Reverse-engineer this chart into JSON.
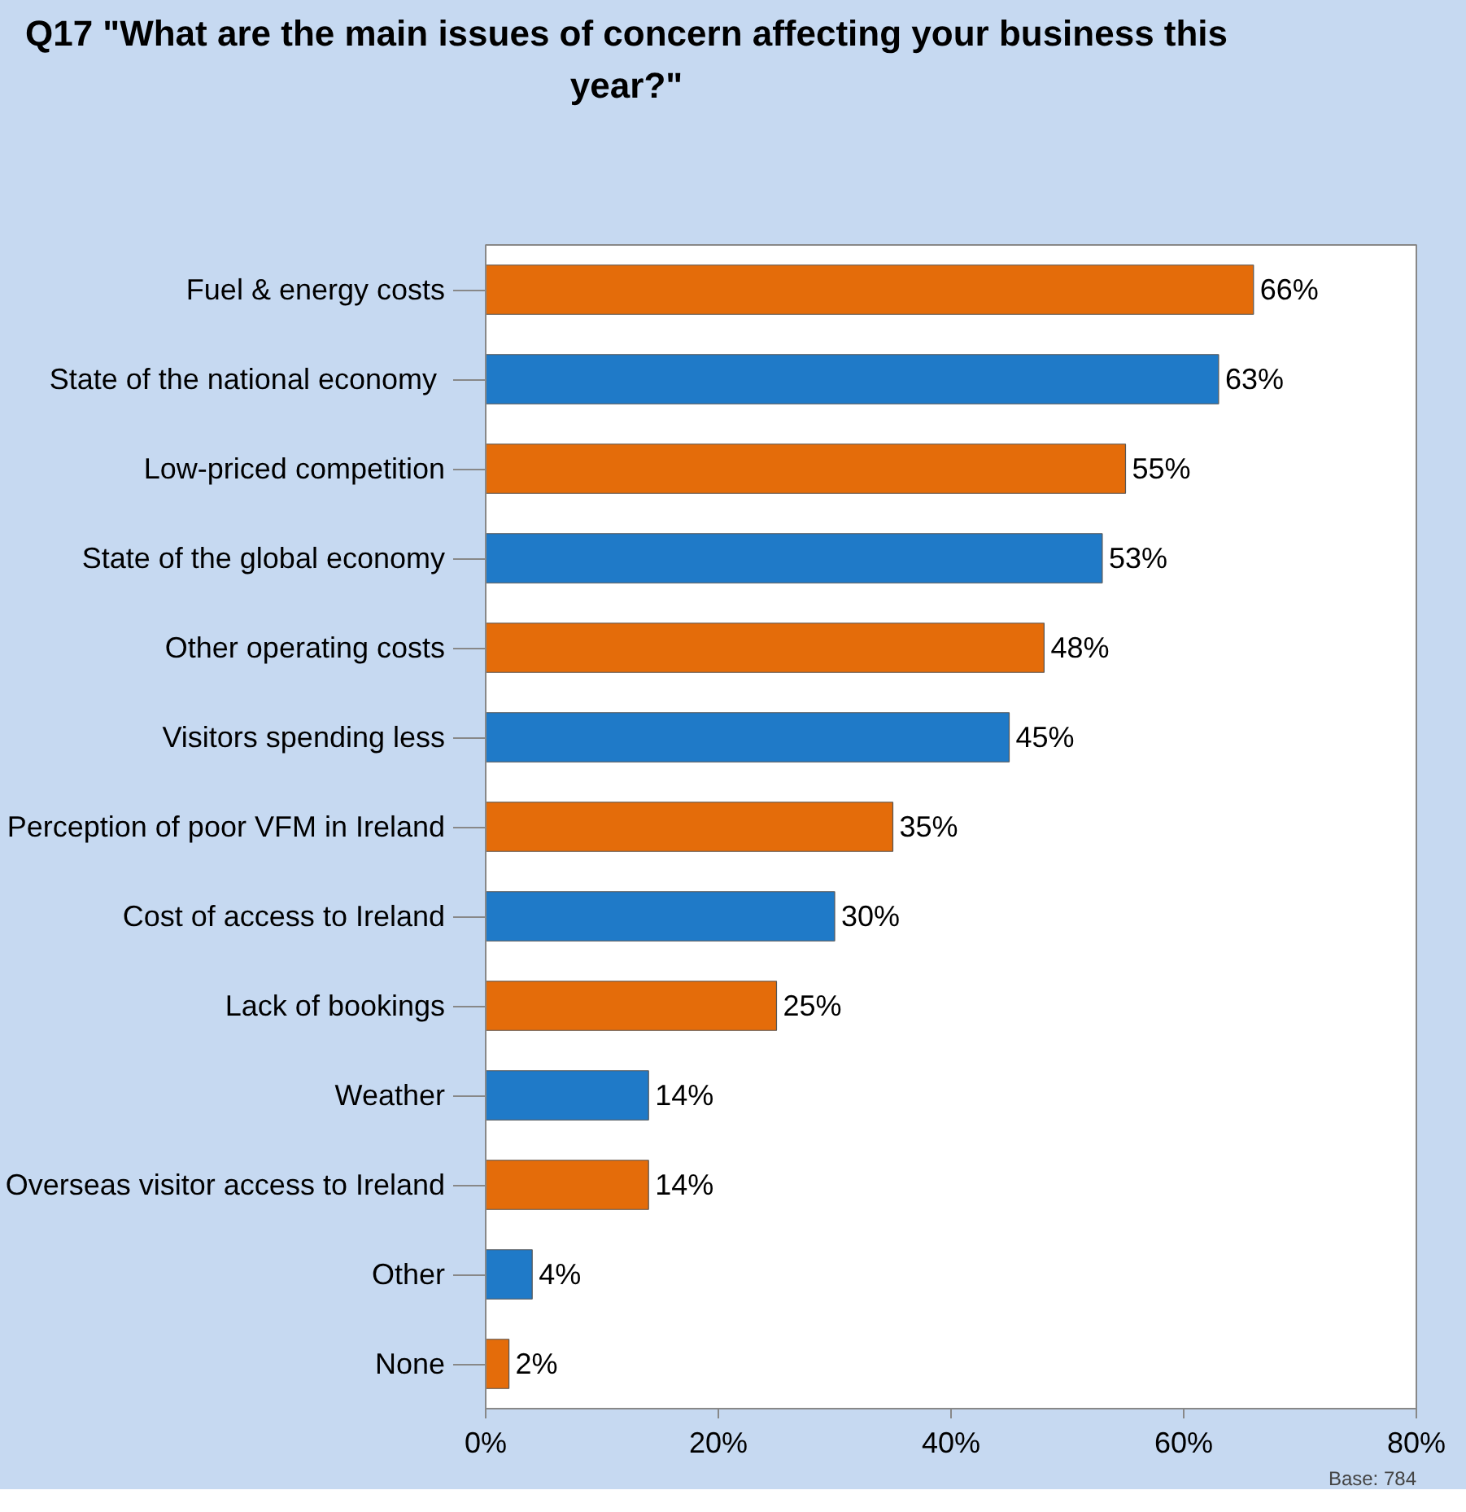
{
  "chart_data": {
    "type": "bar",
    "orientation": "horizontal",
    "title": "Q17 \"What are the main issues of concern affecting your business this year?\"",
    "categories": [
      "Fuel & energy costs",
      "State of the national  economy",
      "Low-priced competition",
      "State of the global economy",
      "Other operating costs",
      "Visitors spending less",
      "Perception of poor VFM in Ireland",
      "Cost of access to Ireland",
      "Lack of bookings",
      "Weather",
      "Overseas visitor access to Ireland",
      "Other",
      "None"
    ],
    "values": [
      66,
      63,
      55,
      53,
      48,
      45,
      35,
      30,
      25,
      14,
      14,
      4,
      2
    ],
    "value_labels": [
      "66%",
      "63%",
      "55%",
      "53%",
      "48%",
      "45%",
      "35%",
      "30%",
      "25%",
      "14%",
      "14%",
      "4%",
      "2%"
    ],
    "colors": [
      "#e46c0a",
      "#1f7ac8",
      "#e46c0a",
      "#1f7ac8",
      "#e46c0a",
      "#1f7ac8",
      "#e46c0a",
      "#1f7ac8",
      "#e46c0a",
      "#1f7ac8",
      "#e46c0a",
      "#1f7ac8",
      "#e46c0a"
    ],
    "xlim": [
      0,
      80
    ],
    "xticks": [
      {
        "value": 0,
        "label": "0%"
      },
      {
        "value": 20,
        "label": "20%"
      },
      {
        "value": 40,
        "label": "40%"
      },
      {
        "value": 60,
        "label": "60%"
      },
      {
        "value": 80,
        "label": "80%"
      }
    ],
    "grid": false,
    "annotations": [
      "Base: 784"
    ]
  }
}
